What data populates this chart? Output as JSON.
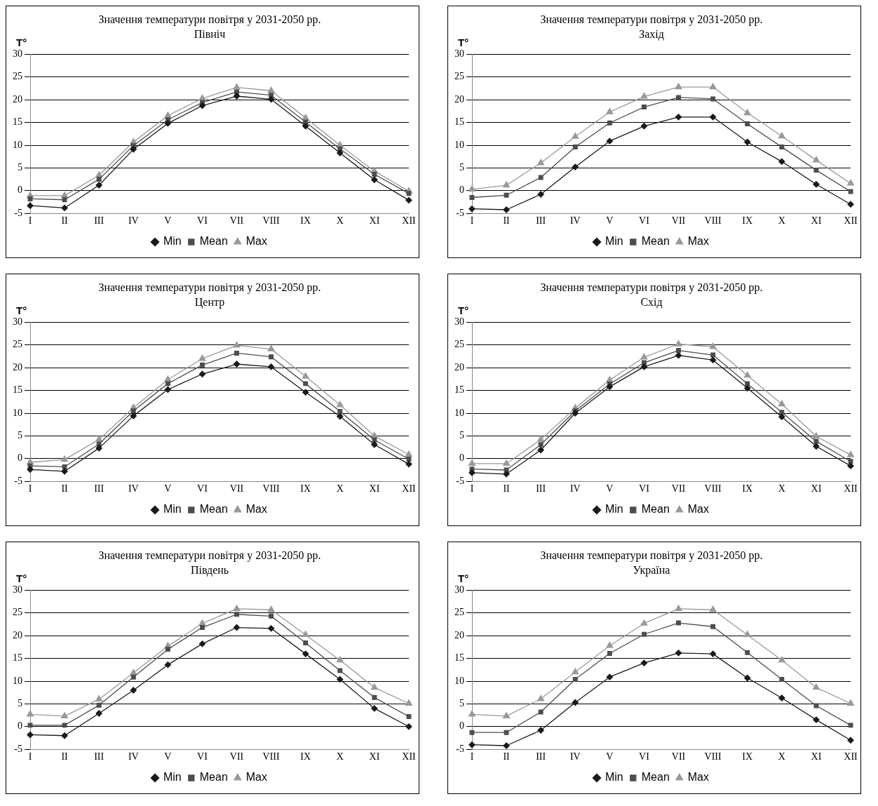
{
  "chart_data": [
    {
      "type": "line",
      "title": "Значення температури повітря у 2031-2050 рр.",
      "subtitle": "Північ",
      "ylabel": "T°",
      "categories": [
        "I",
        "II",
        "III",
        "IV",
        "V",
        "VI",
        "VII",
        "VIII",
        "IX",
        "X",
        "XI",
        "XII"
      ],
      "ylim": [
        -5,
        30
      ],
      "yticks": [
        -5,
        0,
        5,
        10,
        15,
        20,
        25,
        30
      ],
      "grid": "y",
      "legend": "bottom",
      "line_style": "solid",
      "series": [
        {
          "name": "Min",
          "color": "#1a1a1a",
          "marker": "diamond",
          "values": [
            -3.3,
            -3.8,
            1.2,
            9.1,
            14.8,
            18.7,
            20.8,
            20.1,
            14.2,
            8.3,
            2.4,
            -2.1
          ]
        },
        {
          "name": "Mean",
          "color": "#4d4d4d",
          "marker": "square",
          "values": [
            -1.8,
            -2.0,
            2.5,
            9.9,
            15.6,
            19.4,
            21.7,
            21.0,
            15.1,
            9.2,
            3.6,
            -0.6
          ]
        },
        {
          "name": "Max",
          "color": "#999999",
          "marker": "triangle",
          "values": [
            -1.1,
            -1.1,
            3.4,
            10.7,
            16.5,
            20.3,
            22.7,
            22.0,
            16.0,
            10.0,
            4.3,
            -0.1
          ]
        }
      ]
    },
    {
      "type": "line",
      "title": "Значення температури повітря у 2031-2050 рр.",
      "subtitle": "Захід",
      "ylabel": "T°",
      "categories": [
        "I",
        "II",
        "III",
        "IV",
        "V",
        "VI",
        "VII",
        "VIII",
        "IX",
        "X",
        "XI",
        "XII"
      ],
      "ylim": [
        -5,
        30
      ],
      "yticks": [
        -5,
        0,
        5,
        10,
        15,
        20,
        25,
        30
      ],
      "grid": "y",
      "legend": "bottom",
      "line_style": "solid",
      "series": [
        {
          "name": "Min",
          "color": "#1a1a1a",
          "marker": "diamond",
          "values": [
            -4.0,
            -4.2,
            -0.8,
            5.2,
            10.9,
            14.2,
            16.2,
            16.2,
            10.7,
            6.4,
            1.4,
            -3.0
          ]
        },
        {
          "name": "Mean",
          "color": "#4d4d4d",
          "marker": "square",
          "values": [
            -1.5,
            -1.0,
            2.9,
            9.6,
            14.9,
            18.4,
            20.5,
            20.2,
            14.7,
            9.6,
            4.5,
            -0.2
          ]
        },
        {
          "name": "Max",
          "color": "#999999",
          "marker": "triangle",
          "values": [
            0.3,
            1.2,
            6.1,
            11.9,
            17.3,
            20.7,
            22.8,
            22.8,
            17.1,
            12.0,
            6.7,
            1.6
          ]
        }
      ]
    },
    {
      "type": "line",
      "title": "Значення температури повітря у 2031-2050 рр.",
      "subtitle": "Центр",
      "ylabel": "T°",
      "categories": [
        "I",
        "II",
        "III",
        "IV",
        "V",
        "VI",
        "VII",
        "VIII",
        "IX",
        "X",
        "XI",
        "XII"
      ],
      "ylim": [
        -5,
        30
      ],
      "yticks": [
        -5,
        0,
        5,
        10,
        15,
        20,
        25,
        30
      ],
      "grid": "y",
      "legend": "bottom",
      "line_style": "solid",
      "series": [
        {
          "name": "Min",
          "color": "#1a1a1a",
          "marker": "diamond",
          "values": [
            -2.4,
            -2.8,
            2.3,
            9.4,
            15.2,
            18.6,
            20.8,
            20.2,
            14.6,
            9.3,
            3.1,
            -1.2
          ]
        },
        {
          "name": "Mean",
          "color": "#4d4d4d",
          "marker": "square",
          "values": [
            -1.6,
            -1.8,
            3.2,
            10.5,
            16.5,
            20.6,
            23.2,
            22.4,
            16.5,
            10.4,
            4.1,
            -0.1
          ]
        },
        {
          "name": "Max",
          "color": "#999999",
          "marker": "triangle",
          "values": [
            -0.8,
            -0.2,
            4.2,
            11.2,
            17.4,
            22.0,
            24.9,
            24.1,
            18.1,
            11.8,
            5.0,
            0.9
          ]
        }
      ]
    },
    {
      "type": "line",
      "title": "Значення температури повітря у 2031-2050 рр.",
      "subtitle": "Схід",
      "ylabel": "T°",
      "categories": [
        "I",
        "II",
        "III",
        "IV",
        "V",
        "VI",
        "VII",
        "VIII",
        "IX",
        "X",
        "XI",
        "XII"
      ],
      "ylim": [
        -5,
        30
      ],
      "yticks": [
        -5,
        0,
        5,
        10,
        15,
        20,
        25,
        30
      ],
      "grid": "y",
      "legend": "bottom",
      "line_style": "solid",
      "series": [
        {
          "name": "Min",
          "color": "#1a1a1a",
          "marker": "diamond",
          "values": [
            -3.1,
            -3.4,
            1.9,
            10.0,
            15.8,
            20.2,
            22.7,
            21.7,
            15.5,
            9.2,
            2.7,
            -1.6
          ]
        },
        {
          "name": "Mean",
          "color": "#4d4d4d",
          "marker": "square",
          "values": [
            -2.3,
            -2.5,
            3.1,
            10.5,
            16.4,
            21.1,
            23.8,
            22.8,
            16.5,
            10.2,
            3.8,
            -0.6
          ]
        },
        {
          "name": "Max",
          "color": "#999999",
          "marker": "triangle",
          "values": [
            -1.1,
            -1.1,
            4.2,
            11.1,
            17.3,
            22.3,
            25.2,
            24.6,
            18.3,
            12.0,
            4.9,
            0.8
          ]
        }
      ]
    },
    {
      "type": "line",
      "title": "Значення температури повітря у 2031-2050 рр.",
      "subtitle": "Південь",
      "ylabel": "T°",
      "categories": [
        "I",
        "II",
        "III",
        "IV",
        "V",
        "VI",
        "VII",
        "VIII",
        "IX",
        "X",
        "XI",
        "XII"
      ],
      "ylim": [
        -5,
        30
      ],
      "yticks": [
        -5,
        0,
        5,
        10,
        15,
        20,
        25,
        30
      ],
      "grid": "y",
      "legend": "bottom",
      "line_style": "solid",
      "series": [
        {
          "name": "Min",
          "color": "#1a1a1a",
          "marker": "diamond",
          "values": [
            -1.8,
            -2.0,
            2.9,
            8.0,
            13.6,
            18.2,
            21.8,
            21.6,
            16.0,
            10.4,
            4.0,
            0.0
          ]
        },
        {
          "name": "Mean",
          "color": "#4d4d4d",
          "marker": "square",
          "values": [
            0.3,
            0.3,
            4.7,
            10.9,
            17.0,
            21.8,
            24.7,
            24.3,
            18.4,
            12.3,
            6.4,
            2.2
          ]
        },
        {
          "name": "Max",
          "color": "#999999",
          "marker": "triangle",
          "values": [
            2.7,
            2.3,
            6.0,
            11.8,
            17.7,
            22.7,
            25.9,
            25.7,
            20.2,
            14.6,
            8.6,
            5.1
          ]
        }
      ]
    },
    {
      "type": "line",
      "title": "Значення температури повітря у 2031-2050 рр.",
      "subtitle": "Україна",
      "ylabel": "T°",
      "categories": [
        "I",
        "II",
        "III",
        "IV",
        "V",
        "VI",
        "VII",
        "VIII",
        "IX",
        "X",
        "XI",
        "XII"
      ],
      "ylim": [
        -5,
        30
      ],
      "yticks": [
        -5,
        0,
        5,
        10,
        15,
        20,
        25,
        30
      ],
      "grid": "y",
      "legend": "bottom",
      "line_style": "solid",
      "series": [
        {
          "name": "Min",
          "color": "#1a1a1a",
          "marker": "diamond",
          "values": [
            -4.0,
            -4.2,
            -0.8,
            5.3,
            10.9,
            14.0,
            16.2,
            16.0,
            10.7,
            6.3,
            1.5,
            -3.0
          ]
        },
        {
          "name": "Mean",
          "color": "#4d4d4d",
          "marker": "square",
          "values": [
            -1.3,
            -1.3,
            3.2,
            10.4,
            16.1,
            20.3,
            22.8,
            22.0,
            16.3,
            10.4,
            4.6,
            0.3
          ]
        },
        {
          "name": "Max",
          "color": "#999999",
          "marker": "triangle",
          "values": [
            2.7,
            2.3,
            6.1,
            12.0,
            17.8,
            22.7,
            25.9,
            25.7,
            20.2,
            14.6,
            8.6,
            5.1
          ]
        }
      ]
    }
  ]
}
